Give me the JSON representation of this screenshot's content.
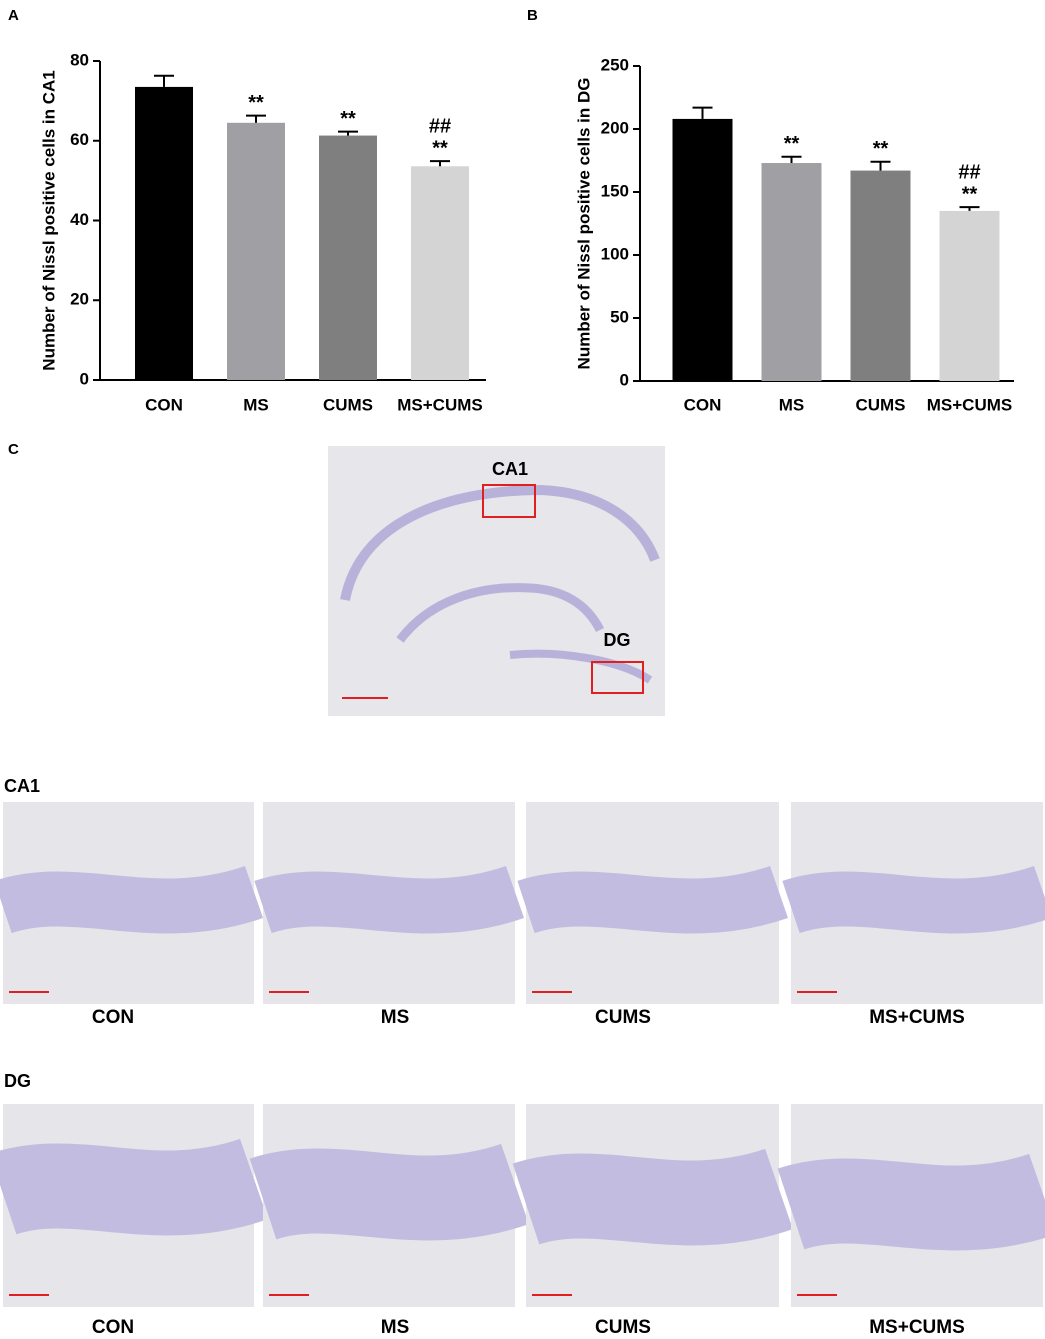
{
  "panel_labels": [
    "A",
    "B",
    "C"
  ],
  "chart_data": [
    {
      "type": "bar",
      "y_label": "Number of Nissl positive cells in CA1",
      "categories": [
        "CON",
        "MS",
        "CUMS",
        "MS+CUMS"
      ],
      "values": [
        73.5,
        64.5,
        61.3,
        53.6
      ],
      "errors": [
        2.8,
        1.8,
        1.0,
        1.3
      ],
      "colors": [
        "#000000",
        "#a0a0a4",
        "#7f7f7f",
        "#d4d4d4"
      ],
      "marks": [
        [],
        [
          "**"
        ],
        [
          "**"
        ],
        [
          "##",
          "**"
        ]
      ],
      "ylim": [
        0,
        80
      ],
      "yticks": [
        0,
        20,
        40,
        60,
        80
      ]
    },
    {
      "type": "bar",
      "y_label": "Number of Nissl positive cells in DG",
      "categories": [
        "CON",
        "MS",
        "CUMS",
        "MS+CUMS"
      ],
      "values": [
        208,
        173,
        167,
        135
      ],
      "errors": [
        9,
        5,
        7,
        3
      ],
      "colors": [
        "#000000",
        "#a0a0a4",
        "#7f7f7f",
        "#d4d4d4"
      ],
      "marks": [
        [],
        [
          "**"
        ],
        [
          "**"
        ],
        [
          "##",
          "**"
        ]
      ],
      "ylim": [
        0,
        250
      ],
      "yticks": [
        0,
        50,
        100,
        150,
        200,
        250
      ]
    }
  ],
  "panel_c": {
    "overview_regions": [
      "CA1",
      "DG"
    ],
    "rows": [
      {
        "label": "CA1",
        "groups": [
          "CON",
          "MS",
          "CUMS",
          "MS+CUMS"
        ]
      },
      {
        "label": "DG",
        "groups": [
          "CON",
          "MS",
          "CUMS",
          "MS+CUMS"
        ]
      }
    ]
  }
}
